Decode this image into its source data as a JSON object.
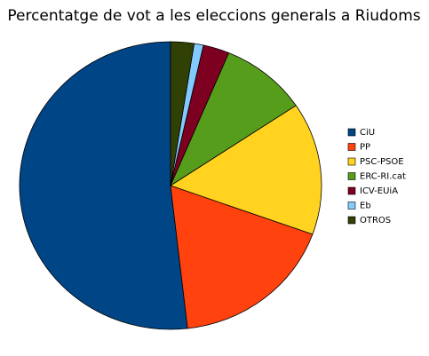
{
  "chart_data": {
    "type": "pie",
    "title": "Percentatge de vot a les eleccions generals a Riudoms",
    "categories": [
      "CiU",
      "PP",
      "PSC-PSOE",
      "ERC-RI.cat",
      "ICV-EUiA",
      "Eb",
      "OTROS"
    ],
    "values": [
      51.8,
      17.7,
      14.9,
      9.3,
      2.8,
      1.0,
      2.5
    ],
    "colors": [
      "#004586",
      "#ff420e",
      "#ffd320",
      "#579d1c",
      "#7e0021",
      "#83caff",
      "#314004"
    ],
    "direction": "counterclockwise",
    "legend": "right"
  }
}
